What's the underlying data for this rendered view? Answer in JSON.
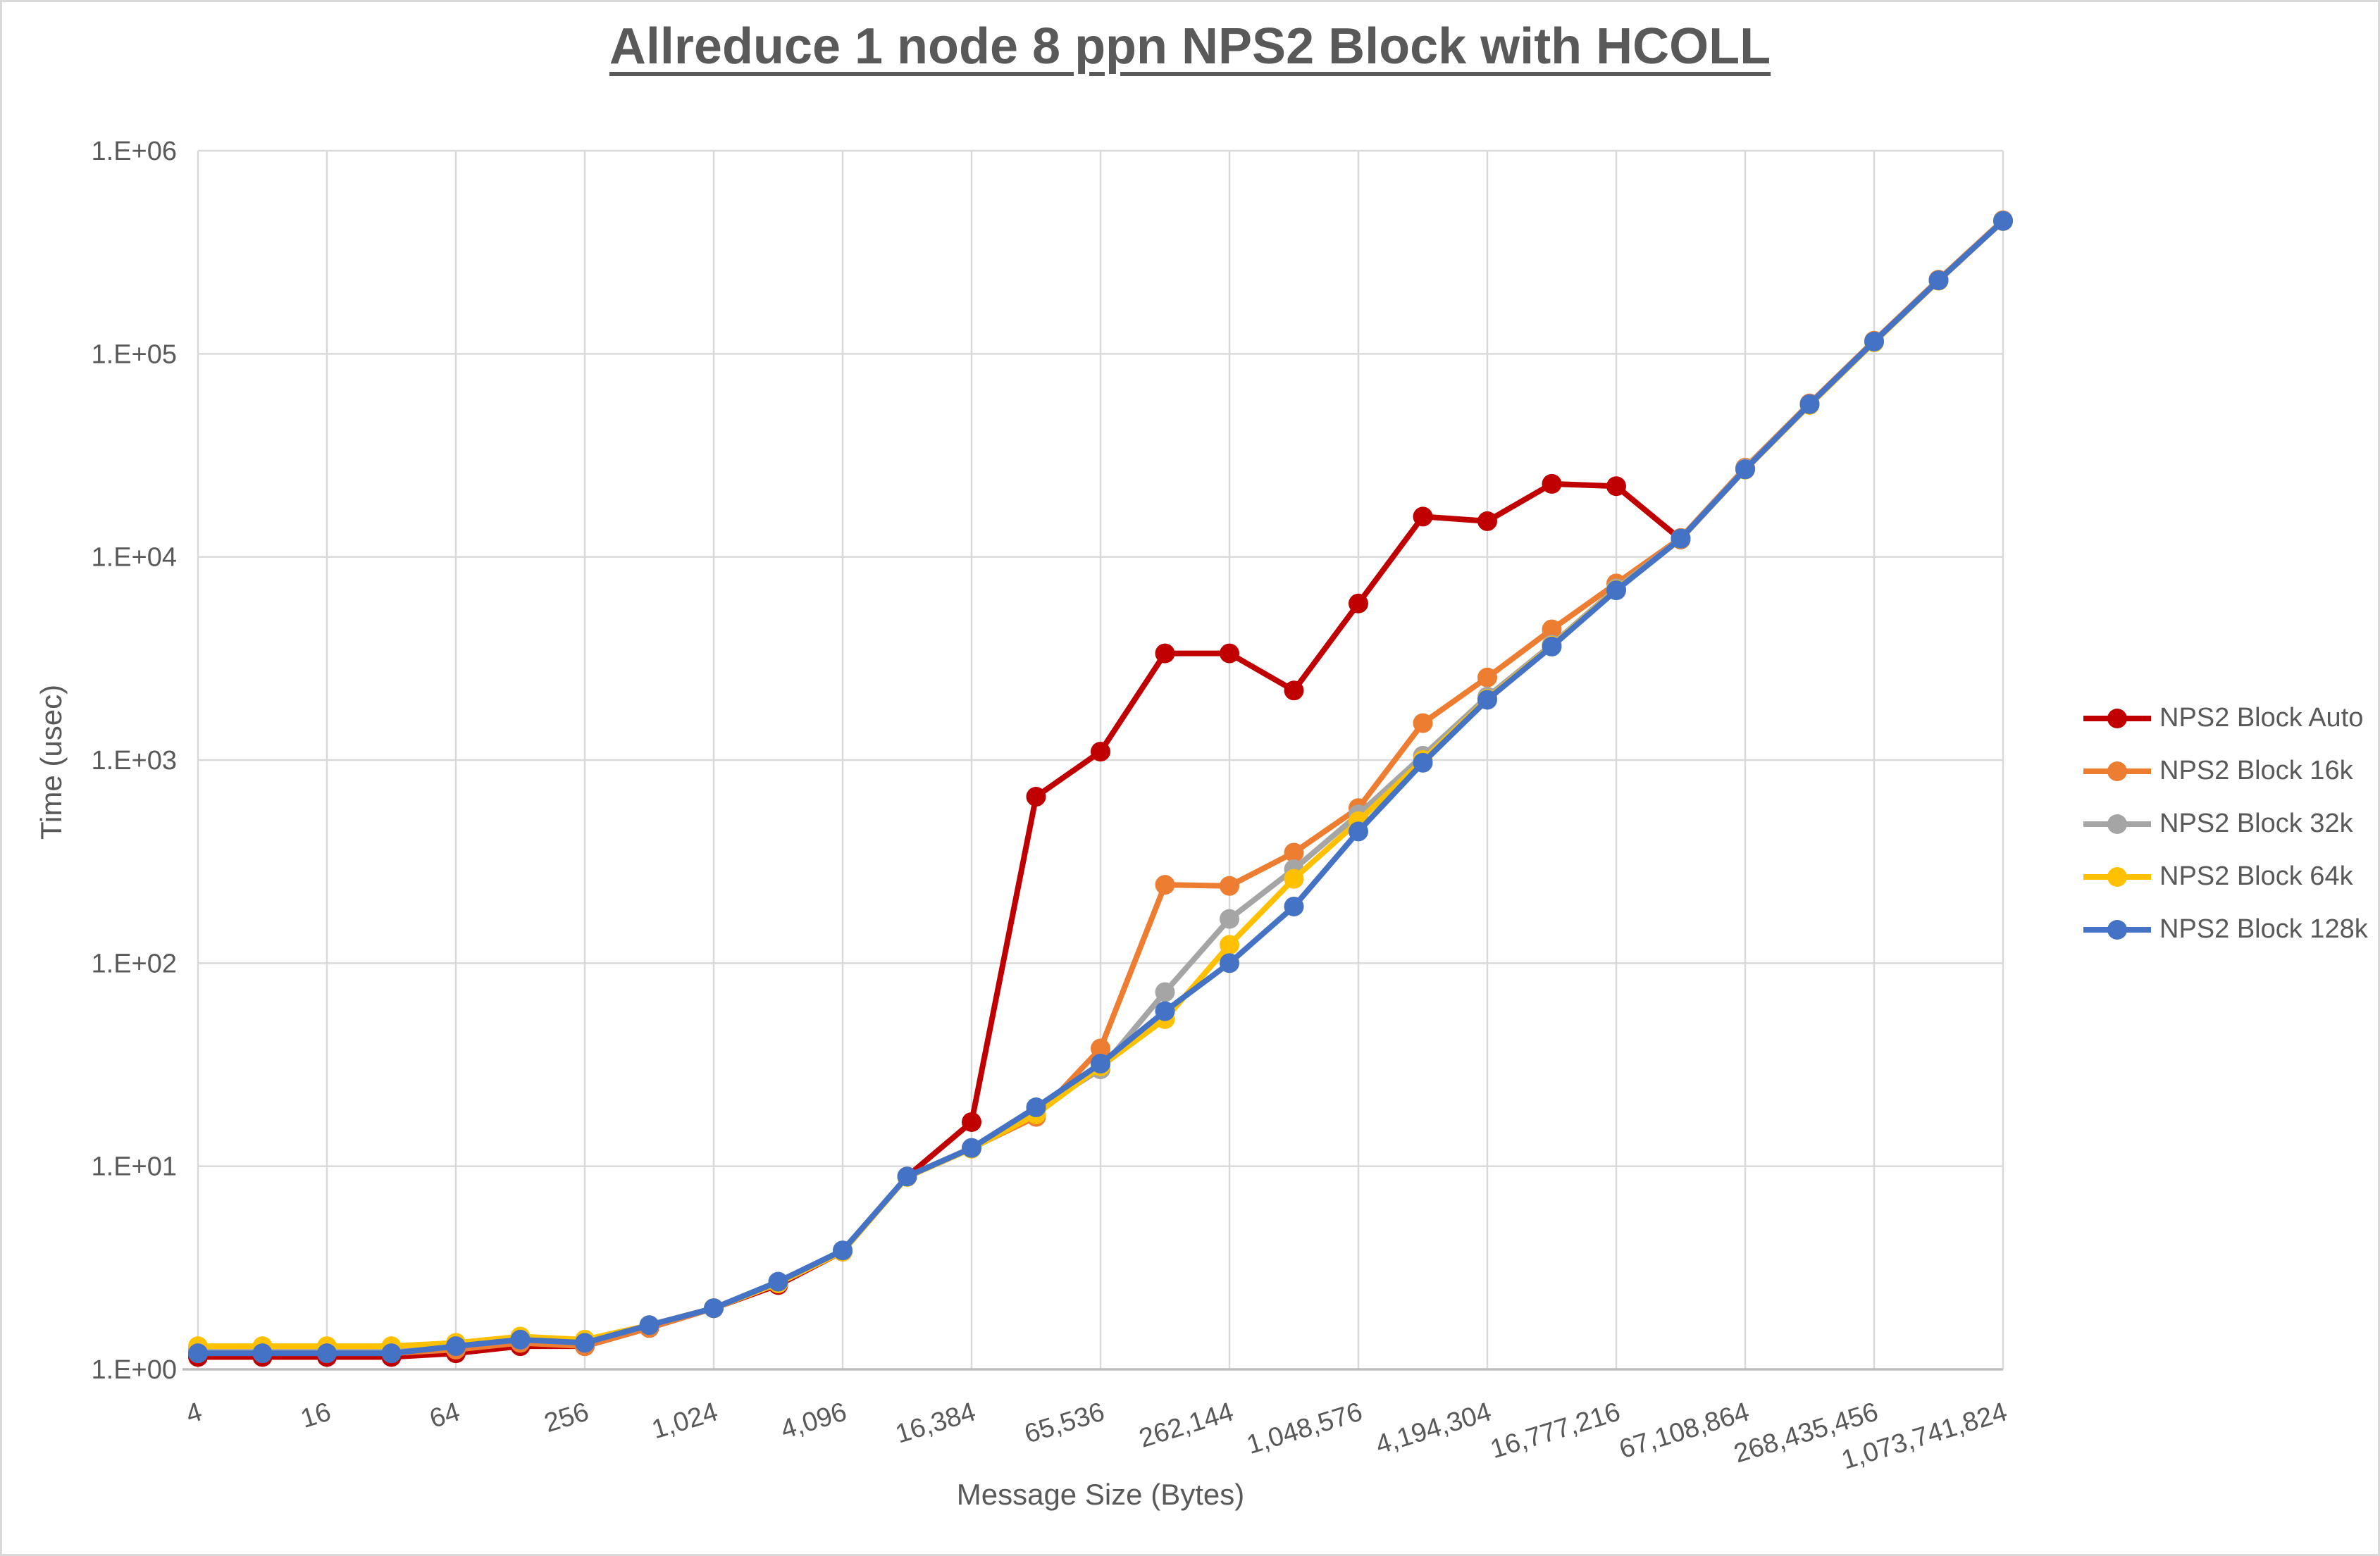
{
  "chart_data": {
    "type": "line",
    "title": "Allreduce 1 node 8 ppn NPS2 Block with HCOLL",
    "xlabel": "Message Size (Bytes)",
    "ylabel": "Time (usec)",
    "x_scale": "log2",
    "y_scale": "log10",
    "grid": true,
    "legend_position": "right",
    "ylim": [
      1,
      1000000
    ],
    "y_tick_labels": [
      "1.E+00",
      "1.E+01",
      "1.E+02",
      "1.E+03",
      "1.E+04",
      "1.E+05",
      "1.E+06"
    ],
    "y_tick_values": [
      1,
      10,
      100,
      1000,
      10000,
      100000,
      1000000
    ],
    "x_tick_labels": [
      "4",
      "16",
      "64",
      "256",
      "1,024",
      "4,096",
      "16,384",
      "65,536",
      "262,144",
      "1,048,576",
      "4,194,304",
      "16,777,216",
      "67,108,864",
      "268,435,456",
      "1,073,741,824"
    ],
    "x_tick_values": [
      4,
      16,
      64,
      256,
      1024,
      4096,
      16384,
      65536,
      262144,
      1048576,
      4194304,
      16777216,
      67108864,
      268435456,
      1073741824
    ],
    "x": [
      4,
      8,
      16,
      32,
      64,
      128,
      256,
      512,
      1024,
      2048,
      4096,
      8192,
      16384,
      32768,
      65536,
      131072,
      262144,
      524288,
      1048576,
      2097152,
      4194304,
      8388608,
      16777216,
      33554432,
      67108864,
      134217728,
      268435456,
      536870912,
      1073741824
    ],
    "series": [
      {
        "name": "NPS2 Block Auto",
        "color": "#C00000",
        "values": [
          1.15,
          1.15,
          1.15,
          1.15,
          1.2,
          1.3,
          1.3,
          1.6,
          2.0,
          2.6,
          3.8,
          8.9,
          16.5,
          660,
          1100,
          3350,
          3350,
          2200,
          5900,
          15800,
          15000,
          22900,
          22300,
          12200
        ]
      },
      {
        "name": "NPS2 Block 16k",
        "color": "#ED7D31",
        "values": [
          1.2,
          1.2,
          1.2,
          1.2,
          1.25,
          1.35,
          1.3,
          1.6,
          2.0,
          2.65,
          3.8,
          8.9,
          12.3,
          17.5,
          38,
          243,
          240,
          350,
          580,
          1520,
          2550,
          4400,
          7400,
          12400,
          27500,
          57000,
          116000,
          232000,
          455000
        ]
      },
      {
        "name": "NPS2 Block 32k",
        "color": "#A5A5A5",
        "values": [
          1.25,
          1.25,
          1.25,
          1.25,
          1.3,
          1.4,
          1.35,
          1.65,
          2.0,
          2.7,
          3.85,
          8.9,
          12.3,
          19,
          30,
          72,
          165,
          290,
          540,
          1050,
          2050,
          3700,
          7000,
          12300,
          27200,
          56500,
          115000,
          230000,
          452000
        ]
      },
      {
        "name": "NPS2 Block 64k",
        "color": "#FFC000",
        "values": [
          1.3,
          1.3,
          1.3,
          1.3,
          1.35,
          1.45,
          1.4,
          1.65,
          2.0,
          2.65,
          3.8,
          8.85,
          12.2,
          18,
          31,
          53,
          123,
          260,
          500,
          1000,
          2000,
          3650,
          6900,
          12250,
          26900,
          56000,
          114000,
          229000,
          450000
        ]
      },
      {
        "name": "NPS2 Block 128k",
        "color": "#4472C4",
        "values": [
          1.2,
          1.2,
          1.2,
          1.2,
          1.3,
          1.4,
          1.35,
          1.65,
          2.0,
          2.7,
          3.85,
          8.9,
          12.3,
          19.5,
          32,
          58,
          100,
          190,
          445,
          970,
          1980,
          3620,
          6850,
          12300,
          27000,
          56500,
          115000,
          230000,
          451000
        ]
      }
    ],
    "colors": {
      "grid": "#D9D9D9",
      "axis_line": "#BFBFBF",
      "text": "#595959"
    }
  }
}
